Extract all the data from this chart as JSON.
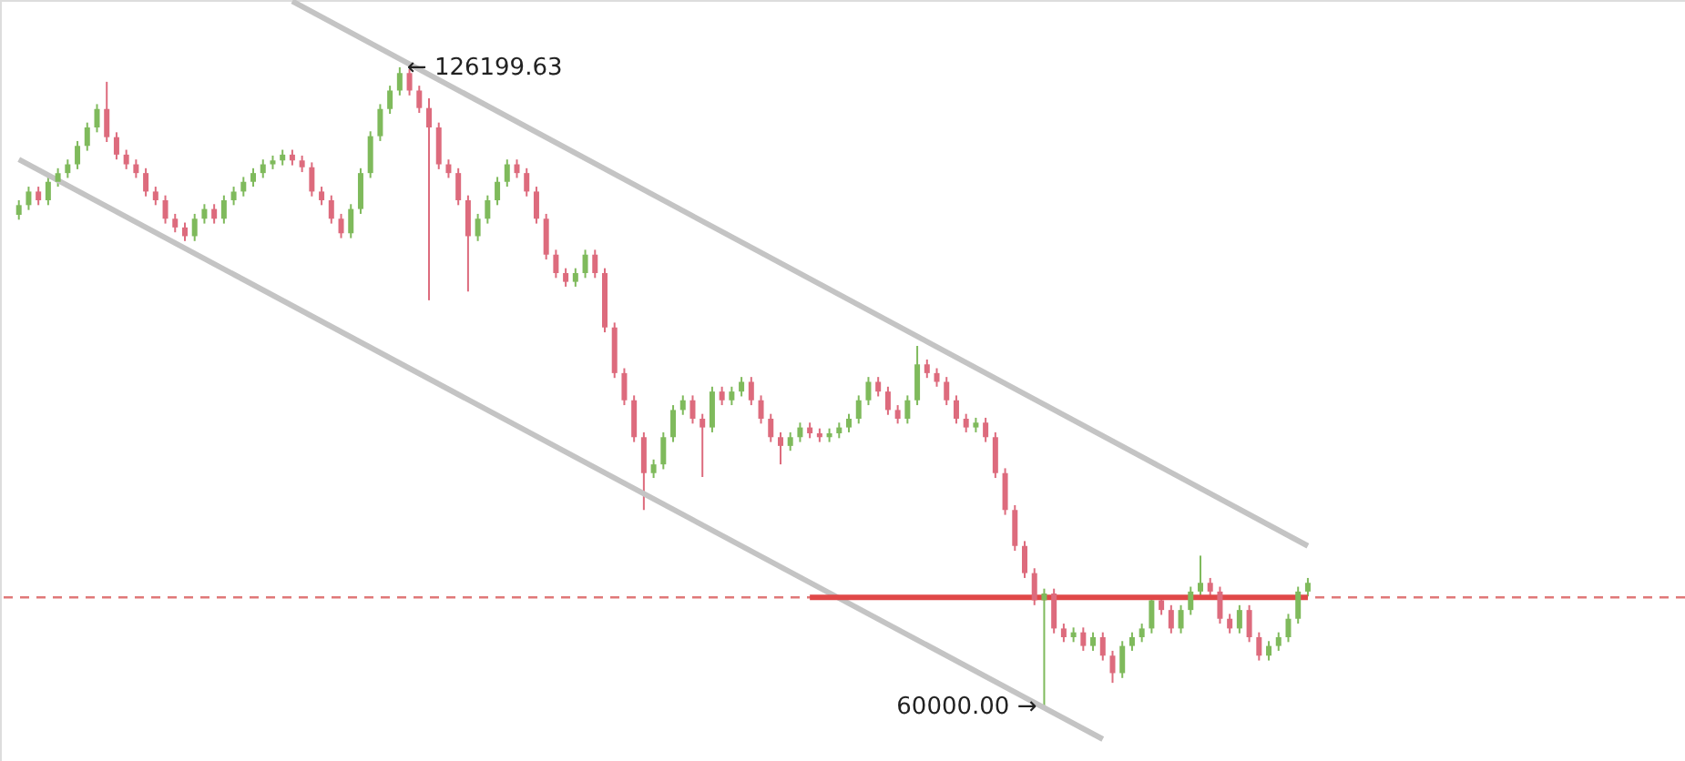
{
  "chart_data": {
    "type": "candlestick",
    "categories": [
      null,
      null,
      null,
      null,
      null,
      null,
      null,
      null,
      null,
      null,
      null,
      null,
      null,
      null,
      null,
      null,
      null,
      null,
      null,
      null,
      null,
      null,
      null,
      null,
      null,
      null,
      null,
      null,
      null,
      null,
      null,
      null,
      null,
      null,
      null,
      null,
      null,
      null,
      null,
      null,
      null,
      null,
      null,
      null,
      null,
      null,
      null,
      null,
      null,
      null,
      null,
      null,
      null,
      null,
      null,
      null,
      null,
      null,
      null,
      null,
      null,
      null,
      null,
      null,
      null,
      null,
      null,
      null,
      null,
      null,
      null,
      null,
      null,
      null,
      null,
      null,
      null,
      null,
      null,
      null,
      null,
      null,
      null,
      null,
      null,
      null,
      null,
      null,
      null,
      null,
      null,
      null,
      null,
      null,
      null,
      null,
      null,
      null,
      null,
      null,
      null,
      null,
      null,
      null,
      null,
      null,
      null,
      null,
      null,
      null,
      null,
      null,
      null,
      null,
      null,
      null,
      null,
      null,
      null,
      null,
      null,
      null,
      null,
      null,
      null,
      null,
      null,
      null,
      null,
      null,
      null,
      null,
      null
    ],
    "ohlc": [
      [
        111000,
        112500,
        110500,
        112000
      ],
      [
        112000,
        113900,
        111500,
        113400
      ],
      [
        113400,
        113900,
        112000,
        112500
      ],
      [
        112500,
        114900,
        112000,
        114400
      ],
      [
        114400,
        115800,
        113900,
        115300
      ],
      [
        115300,
        116700,
        114800,
        116200
      ],
      [
        116200,
        118600,
        115700,
        118100
      ],
      [
        118100,
        120500,
        117600,
        120000
      ],
      [
        120000,
        122400,
        119500,
        121900
      ],
      [
        121900,
        124700,
        118500,
        119000
      ],
      [
        119000,
        119500,
        116700,
        117200
      ],
      [
        117200,
        117700,
        115700,
        116200
      ],
      [
        116200,
        116700,
        114800,
        115300
      ],
      [
        115300,
        115800,
        112900,
        113400
      ],
      [
        113400,
        113900,
        112000,
        112500
      ],
      [
        112500,
        113000,
        110100,
        110600
      ],
      [
        110600,
        111100,
        109200,
        109700
      ],
      [
        109700,
        110200,
        108300,
        108800
      ],
      [
        108800,
        111100,
        108300,
        110600
      ],
      [
        110600,
        112100,
        110100,
        111600
      ],
      [
        111600,
        112100,
        110100,
        110600
      ],
      [
        110600,
        113000,
        110100,
        112500
      ],
      [
        112500,
        113900,
        112000,
        113400
      ],
      [
        113400,
        114900,
        112900,
        114400
      ],
      [
        114400,
        115800,
        113900,
        115300
      ],
      [
        115300,
        116700,
        114800,
        116200
      ],
      [
        116200,
        117100,
        115700,
        116600
      ],
      [
        116600,
        117700,
        116100,
        117200
      ],
      [
        117200,
        117700,
        116100,
        116600
      ],
      [
        116600,
        117100,
        115400,
        115900
      ],
      [
        115900,
        116400,
        112900,
        113400
      ],
      [
        113400,
        113900,
        112000,
        112500
      ],
      [
        112500,
        113000,
        110100,
        110600
      ],
      [
        110600,
        111100,
        108600,
        109100
      ],
      [
        109100,
        112100,
        108600,
        111600
      ],
      [
        111600,
        115800,
        111100,
        115300
      ],
      [
        115300,
        119600,
        114800,
        119100
      ],
      [
        119100,
        122400,
        118600,
        121900
      ],
      [
        121900,
        124300,
        121400,
        123800
      ],
      [
        123800,
        126199.63,
        123300,
        125600
      ],
      [
        125600,
        126000,
        123300,
        123800
      ],
      [
        123800,
        124300,
        121500,
        122000
      ],
      [
        122000,
        123000,
        102200,
        120000
      ],
      [
        120000,
        120500,
        115700,
        116200
      ],
      [
        116200,
        116700,
        114800,
        115300
      ],
      [
        115300,
        115800,
        112000,
        112500
      ],
      [
        112500,
        113000,
        103100,
        108800
      ],
      [
        108800,
        111100,
        108300,
        110600
      ],
      [
        110600,
        113000,
        110100,
        112500
      ],
      [
        112500,
        114900,
        112000,
        114400
      ],
      [
        114400,
        116700,
        113900,
        116200
      ],
      [
        116200,
        116700,
        114800,
        115300
      ],
      [
        115300,
        115800,
        112900,
        113400
      ],
      [
        113400,
        113900,
        110100,
        110600
      ],
      [
        110600,
        111100,
        106400,
        106900
      ],
      [
        106900,
        107400,
        104500,
        105000
      ],
      [
        105000,
        105500,
        103600,
        104100
      ],
      [
        104100,
        105500,
        103600,
        105000
      ],
      [
        105000,
        107400,
        104500,
        106900
      ],
      [
        106900,
        107400,
        104500,
        105000
      ],
      [
        105000,
        105500,
        98900,
        99400
      ],
      [
        99400,
        99900,
        94200,
        94700
      ],
      [
        94700,
        95200,
        91400,
        91900
      ],
      [
        91900,
        92400,
        87600,
        88100
      ],
      [
        88100,
        88600,
        80600,
        84400
      ],
      [
        84400,
        85800,
        83900,
        85300
      ],
      [
        85300,
        88600,
        84800,
        88100
      ],
      [
        88100,
        91400,
        87600,
        90900
      ],
      [
        90900,
        92400,
        90400,
        91900
      ],
      [
        91900,
        92400,
        89500,
        90000
      ],
      [
        90000,
        90500,
        84000,
        89100
      ],
      [
        89100,
        93300,
        88600,
        92800
      ],
      [
        92800,
        93300,
        91400,
        91900
      ],
      [
        91900,
        93300,
        91400,
        92800
      ],
      [
        92800,
        94300,
        92300,
        93800
      ],
      [
        93800,
        94300,
        91400,
        91900
      ],
      [
        91900,
        92400,
        89500,
        90000
      ],
      [
        90000,
        90500,
        87600,
        88100
      ],
      [
        88100,
        88600,
        85300,
        87200
      ],
      [
        87200,
        88600,
        86700,
        88100
      ],
      [
        88100,
        89600,
        87600,
        89100
      ],
      [
        89100,
        89600,
        88000,
        88500
      ],
      [
        88500,
        89000,
        87600,
        88100
      ],
      [
        88100,
        89000,
        87600,
        88500
      ],
      [
        88500,
        89600,
        88000,
        89100
      ],
      [
        89100,
        90500,
        88600,
        90000
      ],
      [
        90000,
        92400,
        89500,
        91900
      ],
      [
        91900,
        94300,
        91400,
        93800
      ],
      [
        93800,
        94300,
        92300,
        92800
      ],
      [
        92800,
        93300,
        90400,
        90900
      ],
      [
        90900,
        91400,
        89500,
        90000
      ],
      [
        90000,
        92400,
        89500,
        91900
      ],
      [
        91900,
        97500,
        91400,
        95600
      ],
      [
        95600,
        96100,
        94200,
        94700
      ],
      [
        94700,
        95200,
        93300,
        93800
      ],
      [
        93800,
        94300,
        91400,
        91900
      ],
      [
        91900,
        92400,
        89500,
        90000
      ],
      [
        90000,
        90500,
        88600,
        89100
      ],
      [
        89100,
        90100,
        88600,
        89600
      ],
      [
        89600,
        90100,
        87600,
        88100
      ],
      [
        88100,
        88600,
        83900,
        84400
      ],
      [
        84400,
        84900,
        80100,
        80600
      ],
      [
        80600,
        81100,
        76400,
        76900
      ],
      [
        76900,
        77400,
        73600,
        74100
      ],
      [
        74100,
        74600,
        70800,
        71300
      ],
      [
        71300,
        72500,
        60000,
        72000
      ],
      [
        72000,
        72500,
        67900,
        68400
      ],
      [
        68400,
        68900,
        67000,
        67500
      ],
      [
        67500,
        68500,
        67000,
        68000
      ],
      [
        68000,
        68500,
        66100,
        66600
      ],
      [
        66600,
        68000,
        66100,
        67500
      ],
      [
        67500,
        68000,
        65100,
        65600
      ],
      [
        65600,
        66100,
        62800,
        63800
      ],
      [
        63800,
        67100,
        63300,
        66600
      ],
      [
        66600,
        68000,
        66100,
        67500
      ],
      [
        67500,
        68900,
        67000,
        68400
      ],
      [
        68400,
        71800,
        67900,
        71300
      ],
      [
        71300,
        71800,
        69800,
        70300
      ],
      [
        70300,
        70800,
        67900,
        68400
      ],
      [
        68400,
        70800,
        67900,
        70300
      ],
      [
        70300,
        72700,
        69800,
        72200
      ],
      [
        72200,
        75900,
        71700,
        73100
      ],
      [
        73100,
        73600,
        71700,
        72200
      ],
      [
        72200,
        72700,
        68900,
        69400
      ],
      [
        69400,
        69900,
        67900,
        68400
      ],
      [
        68400,
        70800,
        67900,
        70300
      ],
      [
        70300,
        70800,
        67000,
        67500
      ],
      [
        67500,
        68000,
        65100,
        65600
      ],
      [
        65600,
        67100,
        65100,
        66600
      ],
      [
        66600,
        68000,
        66100,
        67500
      ],
      [
        67500,
        69900,
        67000,
        69400
      ],
      [
        69400,
        72700,
        68900,
        72200
      ],
      [
        72200,
        73600,
        71700,
        73100
      ]
    ],
    "colors": [
      "#7fba5c",
      "#7fba5c",
      "#dd6b7d",
      "#7fba5c",
      "#7fba5c",
      "#7fba5c",
      "#7fba5c",
      "#7fba5c",
      "#7fba5c",
      "#dd6b7d",
      "#dd6b7d",
      "#dd6b7d",
      "#dd6b7d",
      "#dd6b7d",
      "#dd6b7d",
      "#dd6b7d",
      "#dd6b7d",
      "#dd6b7d",
      "#7fba5c",
      "#7fba5c",
      "#dd6b7d",
      "#7fba5c",
      "#7fba5c",
      "#7fba5c",
      "#7fba5c",
      "#7fba5c",
      "#7fba5c",
      "#7fba5c",
      "#dd6b7d",
      "#dd6b7d",
      "#dd6b7d",
      "#dd6b7d",
      "#dd6b7d",
      "#dd6b7d",
      "#7fba5c",
      "#7fba5c",
      "#7fba5c",
      "#7fba5c",
      "#7fba5c",
      "#7fba5c",
      "#dd6b7d",
      "#dd6b7d",
      "#dd6b7d",
      "#dd6b7d",
      "#dd6b7d",
      "#dd6b7d",
      "#dd6b7d",
      "#7fba5c",
      "#7fba5c",
      "#7fba5c",
      "#7fba5c",
      "#dd6b7d",
      "#dd6b7d",
      "#dd6b7d",
      "#dd6b7d",
      "#dd6b7d",
      "#dd6b7d",
      "#7fba5c",
      "#7fba5c",
      "#dd6b7d",
      "#dd6b7d",
      "#dd6b7d",
      "#dd6b7d",
      "#dd6b7d",
      "#dd6b7d",
      "#7fba5c",
      "#7fba5c",
      "#7fba5c",
      "#7fba5c",
      "#dd6b7d",
      "#dd6b7d",
      "#7fba5c",
      "#dd6b7d",
      "#7fba5c",
      "#7fba5c",
      "#dd6b7d",
      "#dd6b7d",
      "#dd6b7d",
      "#dd6b7d",
      "#7fba5c",
      "#7fba5c",
      "#dd6b7d",
      "#dd6b7d",
      "#7fba5c",
      "#7fba5c",
      "#7fba5c",
      "#7fba5c",
      "#7fba5c",
      "#dd6b7d",
      "#dd6b7d",
      "#dd6b7d",
      "#7fba5c",
      "#7fba5c",
      "#dd6b7d",
      "#dd6b7d",
      "#dd6b7d",
      "#dd6b7d",
      "#dd6b7d",
      "#7fba5c",
      "#dd6b7d",
      "#dd6b7d",
      "#dd6b7d",
      "#dd6b7d",
      "#dd6b7d",
      "#dd6b7d",
      "#7fba5c",
      "#dd6b7d",
      "#dd6b7d",
      "#7fba5c",
      "#dd6b7d",
      "#7fba5c",
      "#dd6b7d",
      "#dd6b7d",
      "#7fba5c",
      "#7fba5c",
      "#7fba5c",
      "#7fba5c",
      "#dd6b7d",
      "#dd6b7d",
      "#7fba5c",
      "#7fba5c",
      "#7fba5c",
      "#dd6b7d",
      "#dd6b7d",
      "#dd6b7d",
      "#7fba5c",
      "#dd6b7d",
      "#dd6b7d",
      "#7fba5c",
      "#7fba5c",
      "#7fba5c",
      "#7fba5c",
      "#7fba5c"
    ],
    "series": [
      {
        "type": "line",
        "color": "#c4c4c4",
        "values": [
          null,
          null,
          null,
          null,
          null,
          null,
          null,
          null,
          null,
          null,
          null,
          null,
          null,
          null,
          null,
          null,
          null,
          null,
          null,
          null,
          null,
          null,
          null,
          null,
          null,
          null,
          null,
          null,
          133000,
          null,
          null,
          null,
          null,
          null,
          null,
          null,
          null,
          null,
          null,
          null,
          null,
          null,
          null,
          null,
          null,
          null,
          null,
          null,
          null,
          null,
          null,
          null,
          null,
          null,
          null,
          null,
          null,
          null,
          null,
          null,
          null,
          null,
          null,
          null,
          null,
          null,
          null,
          null,
          null,
          null,
          null,
          null,
          null,
          null,
          null,
          null,
          null,
          null,
          null,
          null,
          null,
          null,
          null,
          null,
          null,
          null,
          null,
          null,
          null,
          null,
          null,
          null,
          null,
          null,
          null,
          null,
          null,
          null,
          null,
          null,
          null,
          null,
          null,
          null,
          null,
          null,
          null,
          null,
          null,
          null,
          null,
          null,
          null,
          null,
          null,
          null,
          null,
          null,
          null,
          null,
          null,
          null,
          null,
          null,
          null,
          null,
          null,
          null,
          null,
          null,
          null,
          null,
          76900
        ]
      },
      {
        "type": "line",
        "color": "#c4c4c4",
        "values": [
          116700,
          null,
          null,
          null,
          null,
          null,
          null,
          null,
          null,
          null,
          null,
          null,
          null,
          null,
          null,
          null,
          null,
          null,
          null,
          null,
          null,
          null,
          null,
          null,
          null,
          null,
          null,
          null,
          null,
          null,
          null,
          null,
          null,
          null,
          null,
          null,
          null,
          null,
          null,
          null,
          null,
          null,
          null,
          null,
          null,
          null,
          null,
          null,
          null,
          null,
          null,
          null,
          null,
          null,
          null,
          null,
          null,
          null,
          null,
          null,
          null,
          null,
          null,
          null,
          null,
          null,
          null,
          null,
          null,
          null,
          null,
          null,
          null,
          null,
          null,
          null,
          null,
          null,
          null,
          null,
          null,
          null,
          null,
          null,
          null,
          null,
          null,
          null,
          null,
          null,
          null,
          null,
          null,
          null,
          null,
          null,
          null,
          null,
          null,
          null,
          null,
          null,
          null,
          null,
          null,
          null,
          null,
          null,
          null,
          null,
          null,
          57000,
          null,
          null,
          null,
          null,
          null,
          null,
          null,
          null,
          null,
          null,
          null,
          null,
          null,
          null,
          null,
          null,
          null,
          null,
          null,
          null,
          null
        ]
      },
      {
        "type": "line",
        "color": "#e04848",
        "values": [
          null,
          null,
          null,
          null,
          null,
          null,
          null,
          null,
          null,
          null,
          null,
          null,
          null,
          null,
          null,
          null,
          null,
          null,
          null,
          null,
          null,
          null,
          null,
          null,
          null,
          null,
          null,
          null,
          null,
          null,
          null,
          null,
          null,
          null,
          null,
          null,
          null,
          null,
          null,
          null,
          null,
          null,
          null,
          null,
          null,
          null,
          null,
          null,
          null,
          null,
          null,
          null,
          null,
          null,
          null,
          null,
          null,
          null,
          null,
          null,
          null,
          null,
          null,
          null,
          null,
          null,
          null,
          null,
          null,
          null,
          null,
          null,
          null,
          null,
          null,
          null,
          null,
          null,
          null,
          null,
          null,
          71600,
          null,
          null,
          null,
          null,
          null,
          null,
          null,
          null,
          null,
          null,
          null,
          null,
          null,
          null,
          null,
          null,
          null,
          null,
          null,
          null,
          null,
          null,
          null,
          null,
          null,
          null,
          null,
          null,
          null,
          null,
          null,
          null,
          null,
          null,
          null,
          null,
          null,
          null,
          null,
          null,
          null,
          null,
          null,
          null,
          null,
          null,
          null,
          null,
          null,
          null,
          71600
        ]
      }
    ],
    "ref_lines": [
      {
        "axis": "y",
        "value": 71600,
        "color": "#e07878",
        "line_style": "dashed"
      }
    ],
    "annotations": [
      "← 126199.63",
      "60000.00 →"
    ],
    "ylim": [
      54750,
      133125
    ],
    "tick_labels": false,
    "grid": false
  }
}
